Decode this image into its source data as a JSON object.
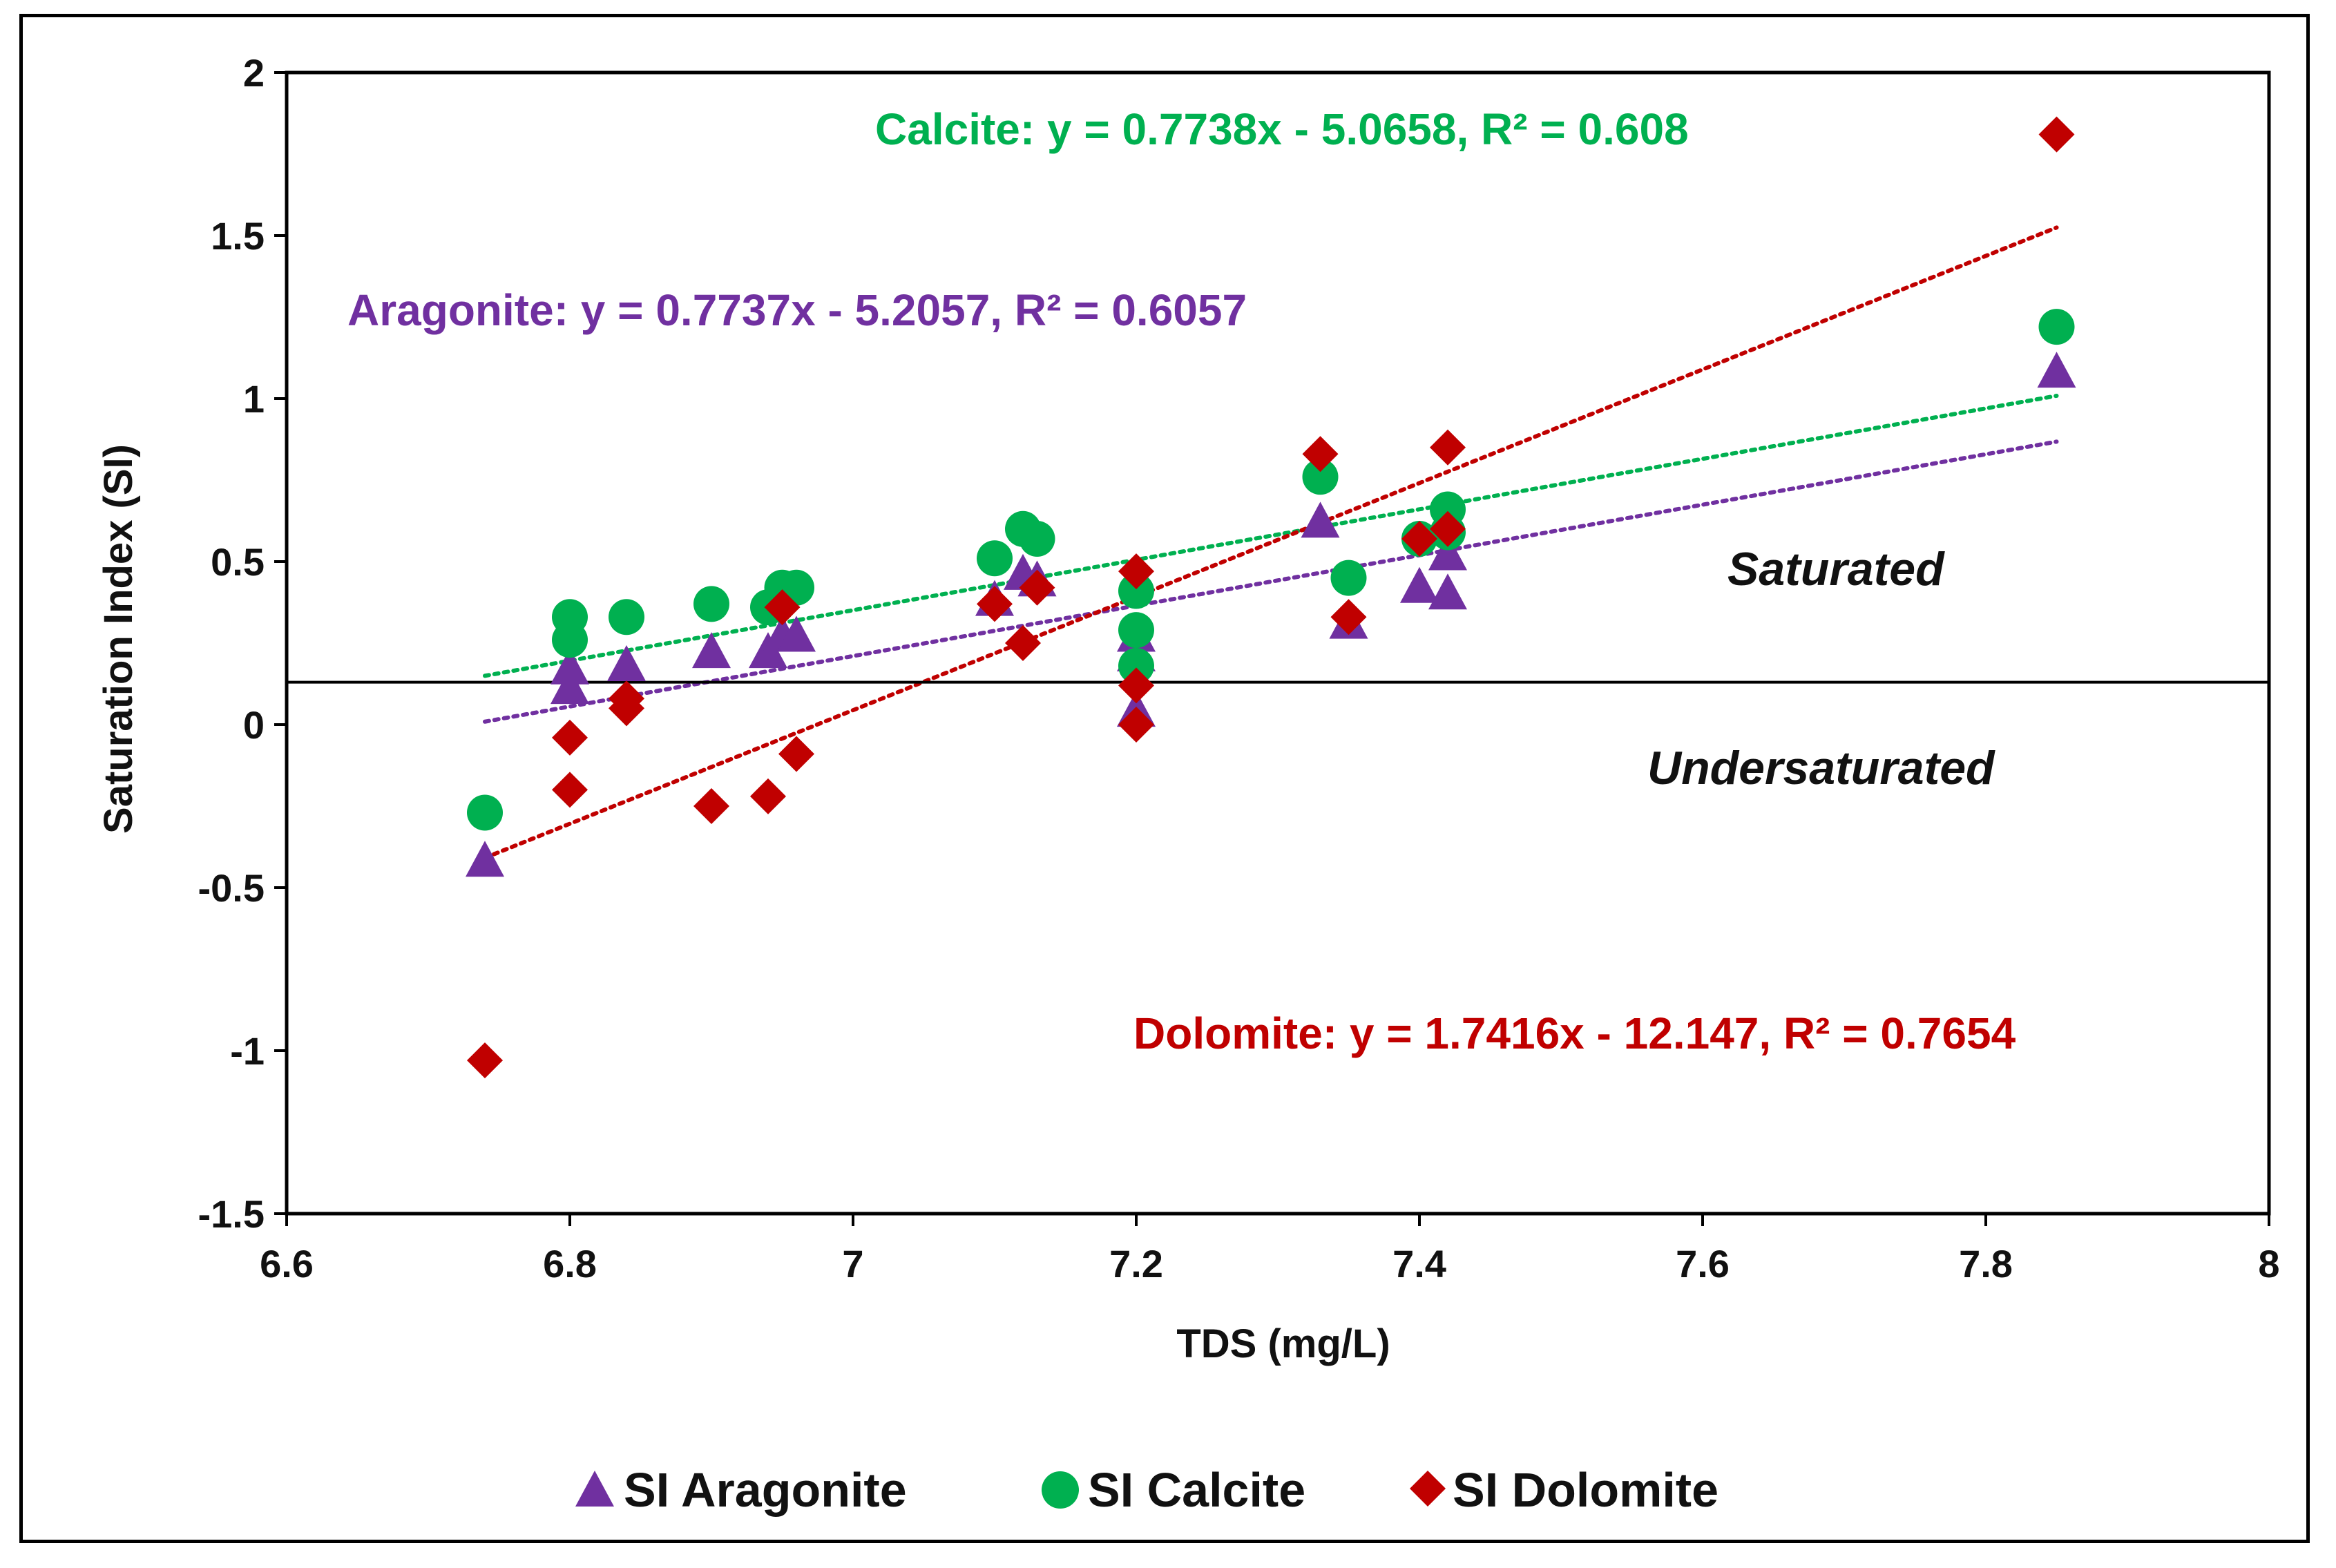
{
  "chart_data": {
    "type": "scatter",
    "title": "",
    "xlabel": "TDS (mg/L)",
    "ylabel": "Saturation Index (SI)",
    "xlim": [
      6.6,
      8
    ],
    "ylim": [
      -1.5,
      2
    ],
    "xticks": [
      6.6,
      6.8,
      7,
      7.2,
      7.4,
      7.6,
      7.8,
      8
    ],
    "xtick_labels": [
      "6.6",
      "6.8",
      "7",
      "7.2",
      "7.4",
      "7.6",
      "7.8",
      "8"
    ],
    "yticks": [
      2,
      1.5,
      1,
      0.5,
      0,
      -0.5,
      -1,
      -1.5
    ],
    "ytick_labels": [
      "2",
      "1.5",
      "1",
      "0.5",
      "0",
      "-0.5",
      "-1",
      "-1.5"
    ],
    "reference_line_y": 0.13,
    "region_labels": [
      "Saturated",
      "Undersaturated"
    ],
    "legend_position": "bottom",
    "series": [
      {
        "name": "SI Aragonite",
        "marker": "triangle",
        "color": "#7030a0",
        "x": [
          6.74,
          6.8,
          6.8,
          6.84,
          6.9,
          6.94,
          6.95,
          6.96,
          7.1,
          7.12,
          7.13,
          7.2,
          7.2,
          7.2,
          7.33,
          7.35,
          7.4,
          7.42,
          7.42,
          7.85
        ],
        "y": [
          -0.42,
          0.11,
          0.17,
          0.18,
          0.22,
          0.22,
          0.27,
          0.27,
          0.38,
          0.46,
          0.44,
          0.04,
          0.21,
          0.27,
          0.62,
          0.31,
          0.42,
          0.4,
          0.52,
          1.08
        ],
        "trendline": {
          "slope": 0.7737,
          "intercept": -5.2057,
          "x_range": [
            6.74,
            7.85
          ],
          "label": "Aragonite: y = 0.7737x - 5.2057, R² = 0.6057"
        }
      },
      {
        "name": "SI Calcite",
        "marker": "circle",
        "color": "#00b050",
        "x": [
          6.74,
          6.8,
          6.8,
          6.84,
          6.9,
          6.94,
          6.95,
          6.96,
          7.1,
          7.12,
          7.13,
          7.2,
          7.2,
          7.2,
          7.33,
          7.35,
          7.4,
          7.42,
          7.42,
          7.85
        ],
        "y": [
          -0.27,
          0.26,
          0.33,
          0.33,
          0.37,
          0.36,
          0.42,
          0.42,
          0.51,
          0.6,
          0.57,
          0.18,
          0.29,
          0.41,
          0.76,
          0.45,
          0.57,
          0.59,
          0.66,
          1.22
        ],
        "trendline": {
          "slope": 0.7738,
          "intercept": -5.0658,
          "x_range": [
            6.74,
            7.85
          ],
          "label": "Calcite: y = 0.7738x - 5.0658, R² = 0.608"
        }
      },
      {
        "name": "SI Dolomite",
        "marker": "diamond",
        "color": "#c00000",
        "x": [
          6.74,
          6.8,
          6.8,
          6.84,
          6.84,
          6.9,
          6.94,
          6.95,
          6.96,
          7.1,
          7.12,
          7.13,
          7.2,
          7.2,
          7.2,
          7.33,
          7.35,
          7.4,
          7.42,
          7.42,
          7.85
        ],
        "y": [
          -1.03,
          -0.04,
          -0.2,
          0.05,
          0.08,
          -0.25,
          -0.22,
          0.36,
          -0.09,
          0.37,
          0.25,
          0.42,
          0.0,
          0.12,
          0.47,
          0.83,
          0.33,
          0.57,
          0.6,
          0.85,
          1.81
        ],
        "trendline": {
          "slope": 1.7416,
          "intercept": -12.147,
          "x_range": [
            6.74,
            7.85
          ],
          "label": "Dolomite: y = 1.7416x - 12.147, R² = 0.7654"
        }
      }
    ]
  }
}
